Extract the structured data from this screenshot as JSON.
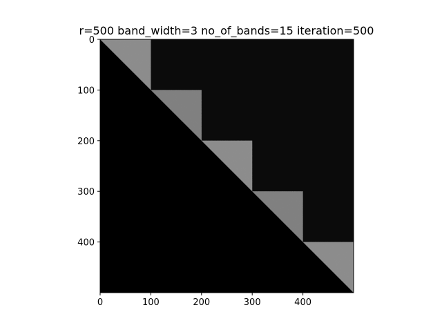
{
  "chart_data": {
    "type": "heatmap",
    "title": "r=500 band_width=3 no_of_bands=15 iteration=500",
    "matrix_size": 500,
    "xlim": [
      0,
      500
    ],
    "ylim": [
      500,
      0
    ],
    "x_ticks": [
      0,
      100,
      200,
      300,
      400
    ],
    "y_ticks": [
      0,
      100,
      200,
      300,
      400
    ],
    "x_tick_labels": [
      "0",
      "100",
      "200",
      "300",
      "400"
    ],
    "y_tick_labels": [
      "0",
      "100",
      "200",
      "300",
      "400"
    ],
    "colormap": "gray",
    "background_value": 0,
    "upper_triangular": true,
    "blocks": [
      {
        "start": 0,
        "end": 100,
        "intensity": 0.55
      },
      {
        "start": 100,
        "end": 200,
        "intensity": 0.5
      },
      {
        "start": 200,
        "end": 300,
        "intensity": 0.55
      },
      {
        "start": 300,
        "end": 400,
        "intensity": 0.5
      },
      {
        "start": 400,
        "end": 500,
        "intensity": 0.55
      }
    ],
    "off_block_intensity": 0.05,
    "colors": {
      "background": "#000000",
      "block": "#8a8a8a",
      "off_block": "#0b0b0b"
    }
  }
}
